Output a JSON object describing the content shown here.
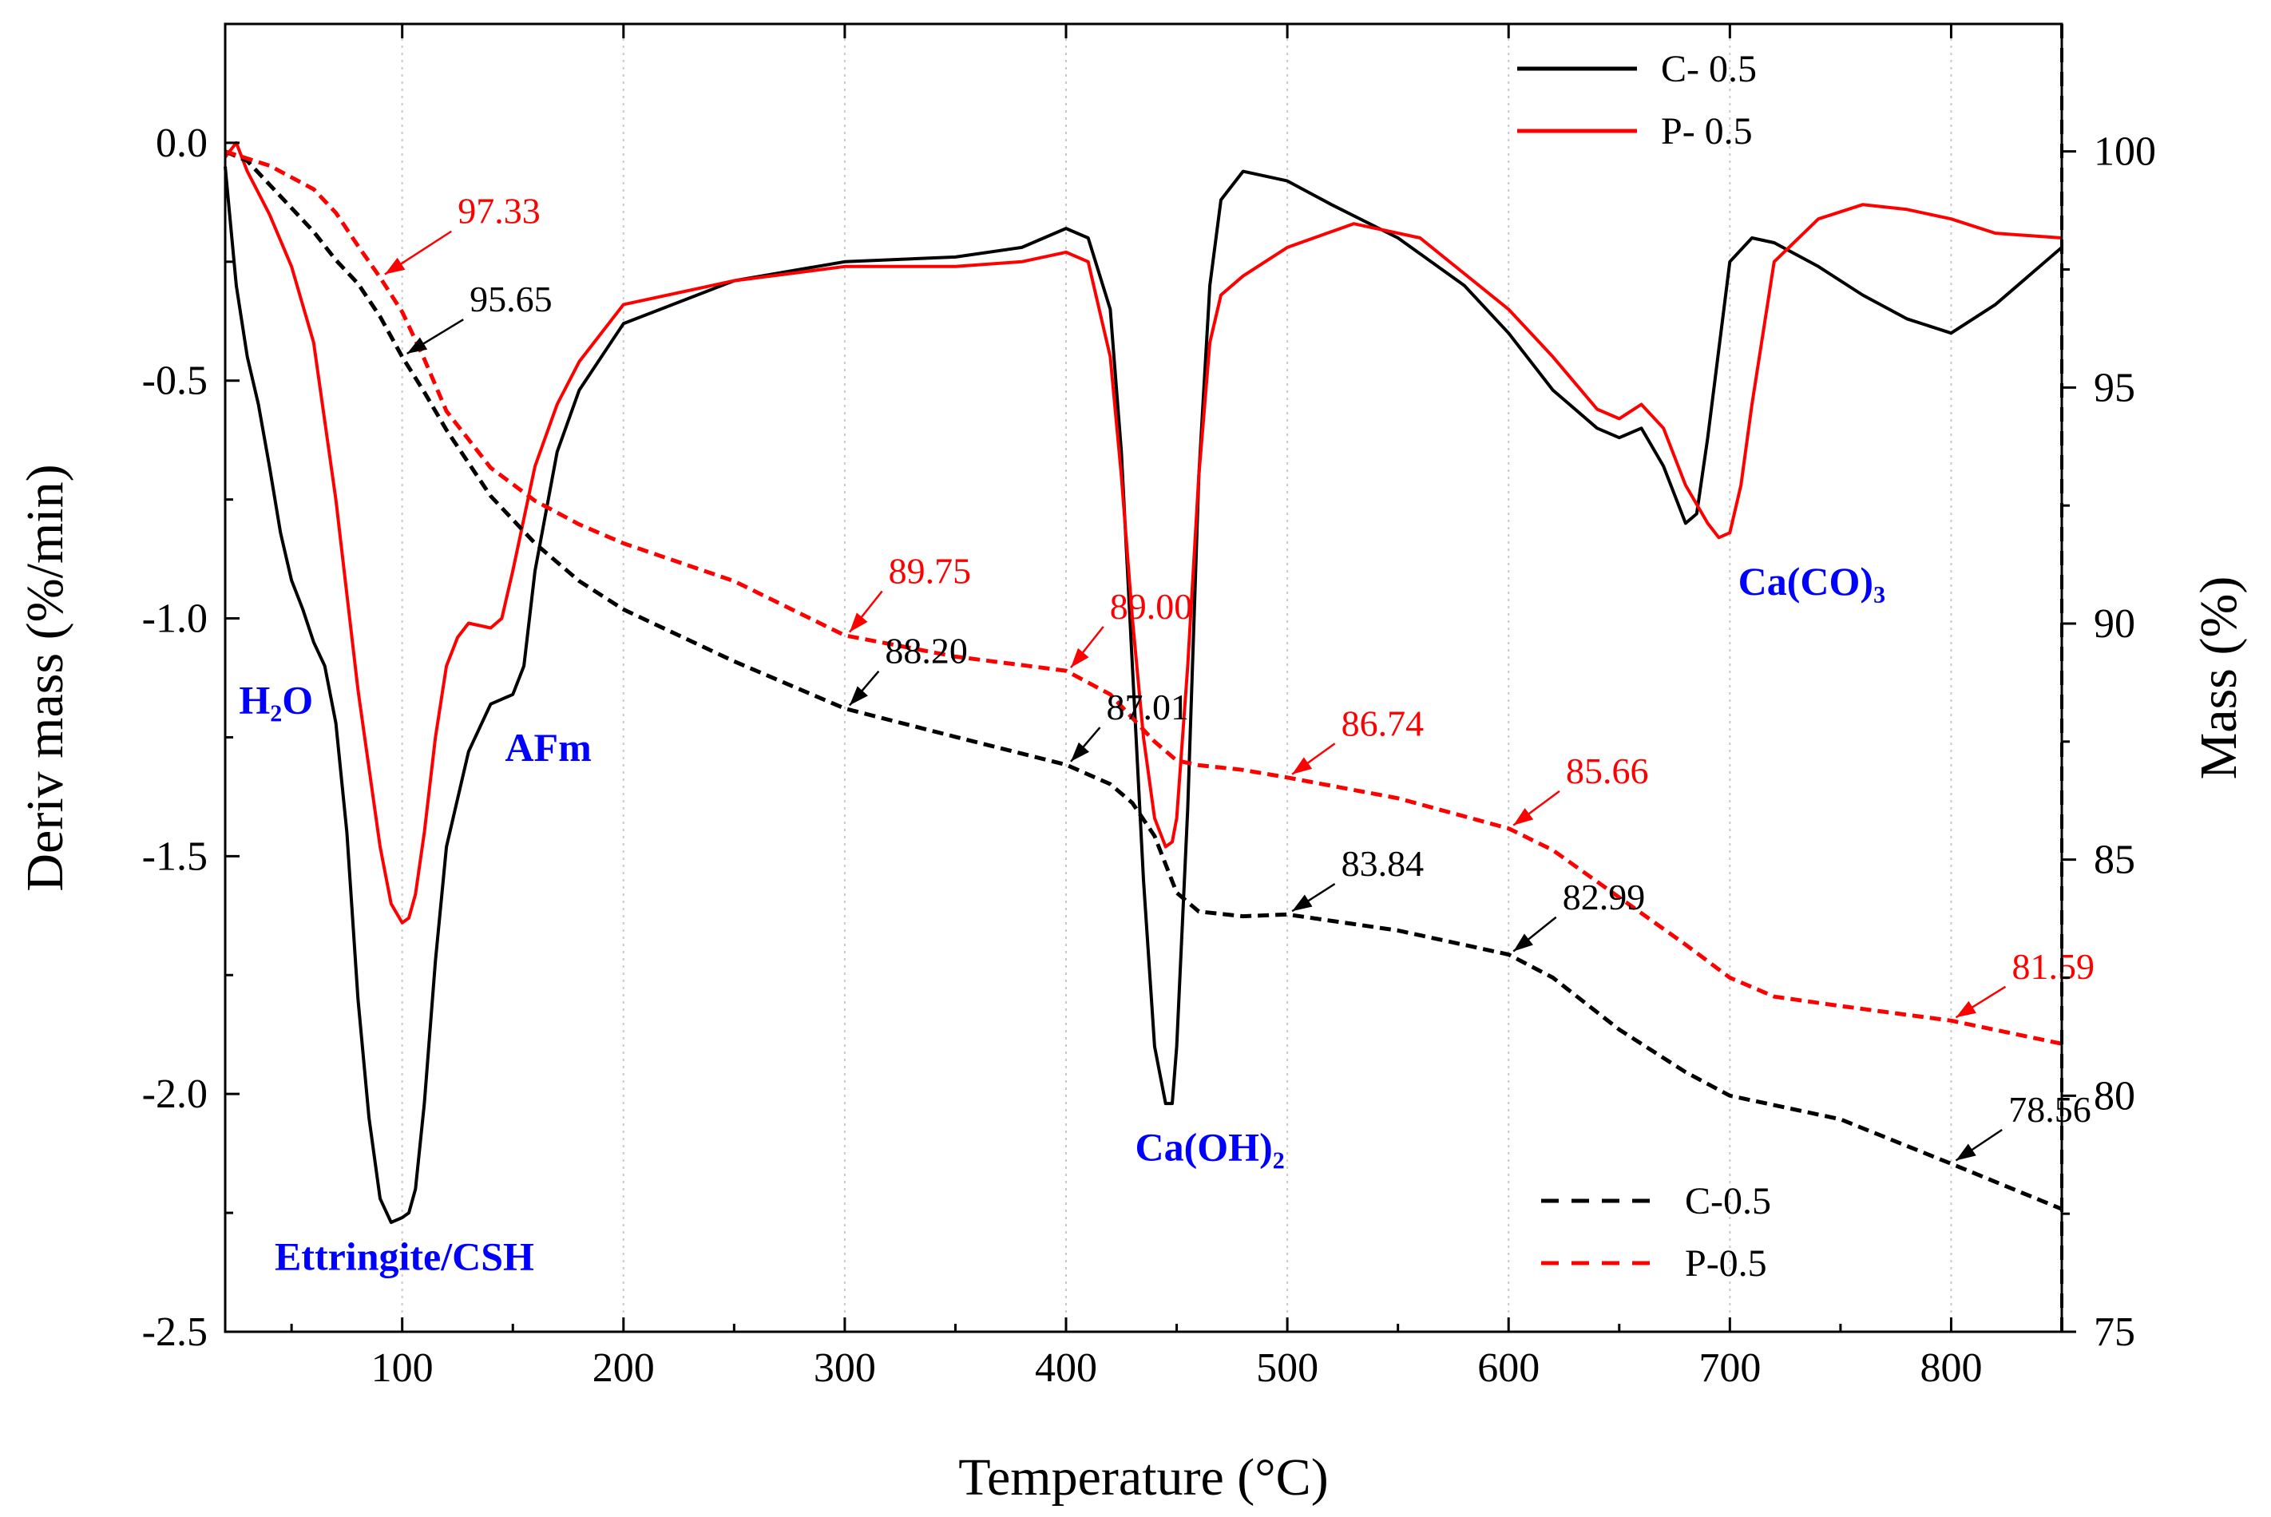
{
  "chart_data": {
    "type": "line",
    "title": "",
    "xlabel": "Temperature (°C)",
    "ylabel_left": "Deriv mass (%/min)",
    "ylabel_right": "Mass (%)",
    "xlim": [
      20,
      850
    ],
    "ylim_left": [
      -2.5,
      0.25
    ],
    "ylim_right": [
      75,
      102.7
    ],
    "x_ticks": [
      100,
      200,
      300,
      400,
      500,
      600,
      700,
      800
    ],
    "y_left_ticks": [
      "0.0",
      "-0.5",
      "-1.0",
      "-1.5",
      "-2.0",
      "-2.5"
    ],
    "y_right_ticks": [
      75,
      80,
      85,
      90,
      95,
      100
    ],
    "grid": "vertical dotted at x ticks",
    "series": [
      {
        "name": "C- 0.5",
        "axis": "left",
        "color": "#000000",
        "style": "solid",
        "x": [
          20,
          25,
          30,
          35,
          40,
          45,
          50,
          55,
          60,
          65,
          70,
          75,
          80,
          85,
          90,
          95,
          100,
          103,
          106,
          110,
          115,
          120,
          130,
          140,
          150,
          155,
          160,
          170,
          180,
          200,
          250,
          300,
          350,
          380,
          400,
          410,
          420,
          425,
          430,
          435,
          440,
          445,
          448,
          450,
          455,
          460,
          465,
          470,
          480,
          500,
          520,
          550,
          580,
          600,
          620,
          640,
          650,
          660,
          670,
          680,
          685,
          690,
          700,
          710,
          720,
          740,
          760,
          780,
          800,
          820,
          850
        ],
        "y": [
          -0.05,
          -0.3,
          -0.45,
          -0.55,
          -0.68,
          -0.82,
          -0.92,
          -0.98,
          -1.05,
          -1.1,
          -1.22,
          -1.45,
          -1.8,
          -2.05,
          -2.22,
          -2.27,
          -2.26,
          -2.25,
          -2.2,
          -2.02,
          -1.72,
          -1.48,
          -1.28,
          -1.18,
          -1.16,
          -1.1,
          -0.9,
          -0.65,
          -0.52,
          -0.38,
          -0.29,
          -0.25,
          -0.24,
          -0.22,
          -0.18,
          -0.2,
          -0.35,
          -0.65,
          -1.1,
          -1.55,
          -1.9,
          -2.02,
          -2.02,
          -1.9,
          -1.4,
          -0.7,
          -0.3,
          -0.12,
          -0.06,
          -0.08,
          -0.13,
          -0.2,
          -0.3,
          -0.4,
          -0.52,
          -0.6,
          -0.62,
          -0.6,
          -0.68,
          -0.8,
          -0.78,
          -0.62,
          -0.25,
          -0.2,
          -0.21,
          -0.26,
          -0.32,
          -0.37,
          -0.4,
          -0.34,
          -0.22
        ]
      },
      {
        "name": "P- 0.5",
        "axis": "left",
        "color": "#ff0000",
        "style": "solid",
        "x": [
          20,
          25,
          30,
          40,
          50,
          60,
          70,
          80,
          90,
          95,
          100,
          103,
          106,
          110,
          115,
          120,
          125,
          130,
          140,
          145,
          150,
          160,
          170,
          180,
          200,
          250,
          300,
          350,
          380,
          400,
          410,
          420,
          425,
          430,
          435,
          440,
          445,
          448,
          450,
          455,
          460,
          465,
          470,
          480,
          500,
          530,
          560,
          600,
          620,
          640,
          650,
          660,
          670,
          680,
          690,
          695,
          700,
          705,
          710,
          720,
          740,
          760,
          780,
          800,
          820,
          850
        ],
        "y": [
          -0.03,
          0.0,
          -0.06,
          -0.15,
          -0.26,
          -0.42,
          -0.75,
          -1.15,
          -1.48,
          -1.6,
          -1.64,
          -1.63,
          -1.58,
          -1.45,
          -1.25,
          -1.1,
          -1.04,
          -1.01,
          -1.02,
          -1.0,
          -0.9,
          -0.68,
          -0.55,
          -0.46,
          -0.34,
          -0.29,
          -0.26,
          -0.26,
          -0.25,
          -0.23,
          -0.25,
          -0.45,
          -0.7,
          -1.0,
          -1.25,
          -1.42,
          -1.48,
          -1.47,
          -1.42,
          -1.1,
          -0.7,
          -0.42,
          -0.32,
          -0.28,
          -0.22,
          -0.17,
          -0.2,
          -0.35,
          -0.45,
          -0.56,
          -0.58,
          -0.55,
          -0.6,
          -0.72,
          -0.8,
          -0.83,
          -0.82,
          -0.72,
          -0.55,
          -0.25,
          -0.16,
          -0.13,
          -0.14,
          -0.16,
          -0.19,
          -0.2
        ]
      },
      {
        "name": "C-0.5",
        "axis": "right",
        "color": "#000000",
        "style": "dashed",
        "x": [
          20,
          30,
          40,
          50,
          60,
          70,
          80,
          90,
          100,
          110,
          120,
          140,
          160,
          180,
          200,
          250,
          300,
          350,
          400,
          420,
          430,
          440,
          450,
          460,
          480,
          500,
          550,
          600,
          620,
          650,
          680,
          700,
          750,
          800,
          850
        ],
        "y": [
          100.0,
          99.8,
          99.3,
          98.8,
          98.3,
          97.7,
          97.2,
          96.5,
          95.65,
          94.9,
          94.1,
          92.7,
          91.7,
          90.9,
          90.3,
          89.2,
          88.2,
          87.6,
          87.01,
          86.6,
          86.2,
          85.5,
          84.3,
          83.9,
          83.8,
          83.84,
          83.5,
          82.99,
          82.5,
          81.4,
          80.5,
          80.0,
          79.5,
          78.56,
          77.6
        ]
      },
      {
        "name": "P-0.5",
        "axis": "right",
        "color": "#ff0000",
        "style": "dashed",
        "x": [
          20,
          40,
          60,
          70,
          80,
          90,
          100,
          110,
          120,
          140,
          160,
          180,
          200,
          250,
          300,
          350,
          400,
          420,
          430,
          440,
          450,
          460,
          480,
          500,
          550,
          600,
          620,
          650,
          680,
          700,
          720,
          750,
          800,
          850
        ],
        "y": [
          100.0,
          99.7,
          99.2,
          98.7,
          98.0,
          97.33,
          96.6,
          95.6,
          94.5,
          93.3,
          92.6,
          92.1,
          91.7,
          90.9,
          89.75,
          89.3,
          89.0,
          88.5,
          88.0,
          87.5,
          87.1,
          87.0,
          86.9,
          86.74,
          86.3,
          85.66,
          85.2,
          84.2,
          83.2,
          82.5,
          82.1,
          81.9,
          81.59,
          81.1
        ]
      }
    ],
    "mass_annotations": [
      {
        "text": "97.33",
        "color": "#ff0000",
        "x": 90,
        "y": 97.33
      },
      {
        "text": "95.65",
        "color": "#000000",
        "x": 100,
        "y": 95.65
      },
      {
        "text": "89.75",
        "color": "#ff0000",
        "x": 300,
        "y": 89.75
      },
      {
        "text": "88.20",
        "color": "#000000",
        "x": 300,
        "y": 88.2
      },
      {
        "text": "89.00",
        "color": "#ff0000",
        "x": 400,
        "y": 89.0
      },
      {
        "text": "87.01",
        "color": "#000000",
        "x": 400,
        "y": 87.01
      },
      {
        "text": "86.74",
        "color": "#ff0000",
        "x": 500,
        "y": 86.74
      },
      {
        "text": "83.84",
        "color": "#000000",
        "x": 500,
        "y": 83.84
      },
      {
        "text": "85.66",
        "color": "#ff0000",
        "x": 600,
        "y": 85.66
      },
      {
        "text": "82.99",
        "color": "#000000",
        "x": 600,
        "y": 82.99
      },
      {
        "text": "81.59",
        "color": "#ff0000",
        "x": 800,
        "y": 81.59
      },
      {
        "text": "78.56",
        "color": "#000000",
        "x": 800,
        "y": 78.56
      }
    ],
    "peak_labels": [
      {
        "text": "H₂O",
        "x": 43,
        "y": -1.2
      },
      {
        "text": "AFm",
        "x": 166,
        "y": -1.3
      },
      {
        "text": "Ettringite/CSH",
        "x": 101,
        "y": -2.37
      },
      {
        "text": "Ca(OH)₂",
        "x": 465,
        "y": -2.14
      },
      {
        "text": "Ca(CO)₃",
        "x": 737,
        "y": -0.95
      }
    ],
    "legends": [
      {
        "position": "top-right",
        "items": [
          "C- 0.5",
          "P- 0.5"
        ]
      },
      {
        "position": "bottom-right",
        "items": [
          "C-0.5",
          "P-0.5"
        ]
      }
    ]
  },
  "colors": {
    "black": "#000000",
    "red": "#ff0000",
    "blue": "#0000ff"
  }
}
